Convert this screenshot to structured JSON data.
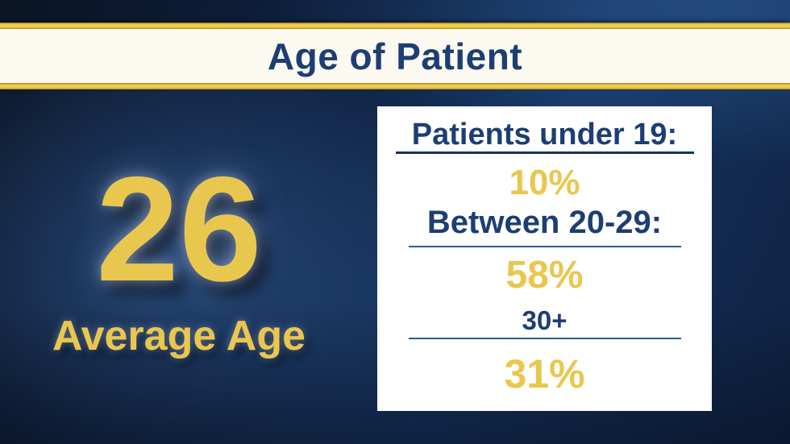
{
  "banner": {
    "title": "Age of Patient"
  },
  "average": {
    "value": "26",
    "label": "Average Age"
  },
  "card": {
    "rows": [
      {
        "label": "Patients under 19:",
        "value": "10%"
      },
      {
        "label": "Between 20-29:",
        "value": "58%"
      },
      {
        "label": "30+",
        "value": "31%"
      }
    ]
  },
  "colors": {
    "navy": "#1d3e74",
    "gold": "#e9c74f",
    "cream": "#fbf9f0",
    "rule": "#2a579e",
    "stripe": "#e6c345"
  },
  "chart_data": {
    "type": "table",
    "title": "Age of Patient",
    "categories": [
      "Patients under 19",
      "Between 20-29",
      "30+"
    ],
    "values": [
      10,
      58,
      31
    ],
    "unit": "%",
    "average_age": 26,
    "legend_position": "none",
    "value_color": "#e9c74f",
    "label_color": "#1d3e74"
  }
}
